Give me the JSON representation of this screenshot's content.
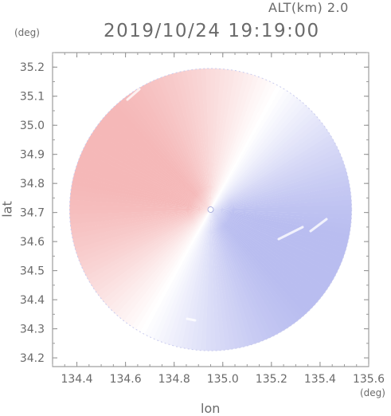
{
  "header": {
    "altitude_label": "ALT(km) 2.0",
    "datetime": "2019/10/24 19:19:00"
  },
  "chart_data": {
    "type": "heatmap",
    "description_type": "polar radar field map",
    "xlabel": "lon",
    "ylabel": "lat",
    "x_unit": "(deg)",
    "y_unit": "(deg)",
    "xlim": [
      134.3,
      135.6
    ],
    "ylim": [
      34.17,
      35.25
    ],
    "x_ticks": [
      134.4,
      134.6,
      134.8,
      135.0,
      135.2,
      135.4,
      135.6
    ],
    "x_tick_labels": [
      "134.4",
      "134.6",
      "134.8",
      "135.0",
      "135.2",
      "135.4",
      "135.6"
    ],
    "y_ticks": [
      34.2,
      34.3,
      34.4,
      34.5,
      34.6,
      34.7,
      34.8,
      34.9,
      35.0,
      35.1,
      35.2
    ],
    "y_tick_labels": [
      "34.2",
      "34.3",
      "34.4",
      "34.5",
      "34.6",
      "34.7",
      "34.8",
      "34.9",
      "35.0",
      "35.1",
      "35.2"
    ],
    "center": {
      "lon": 134.95,
      "lat": 34.71
    },
    "radius_deg_lon": 0.58,
    "colors": {
      "positive": "#f5b8b8",
      "negative": "#b9bdf0",
      "neutral": "#ffffff"
    }
  }
}
